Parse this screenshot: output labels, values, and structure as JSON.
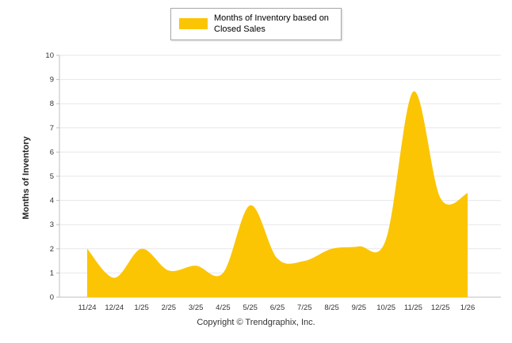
{
  "legend": {
    "label": "Months of Inventory based on Closed Sales"
  },
  "footer": {
    "copyright": "Copyright © Trendgraphix, Inc."
  },
  "chart_data": {
    "type": "area",
    "title": "",
    "xlabel": "",
    "ylabel": "Months of Inventory",
    "categories": [
      "11/24",
      "12/24",
      "1/25",
      "2/25",
      "3/25",
      "4/25",
      "5/25",
      "6/25",
      "7/25",
      "8/25",
      "9/25",
      "10/25",
      "11/25",
      "12/25",
      "1/26"
    ],
    "values": [
      2.0,
      0.8,
      2.0,
      1.1,
      1.3,
      1.0,
      3.8,
      1.6,
      1.5,
      2.0,
      2.1,
      2.4,
      8.5,
      4.1,
      4.3
    ],
    "ylim": [
      0,
      10
    ],
    "ytick_step": 1,
    "grid": true,
    "legend_position": "top",
    "colors": {
      "area": "#FBC504",
      "grid": "#E7E7E7",
      "axis": "#BFBFBF",
      "text": "#333333"
    }
  }
}
